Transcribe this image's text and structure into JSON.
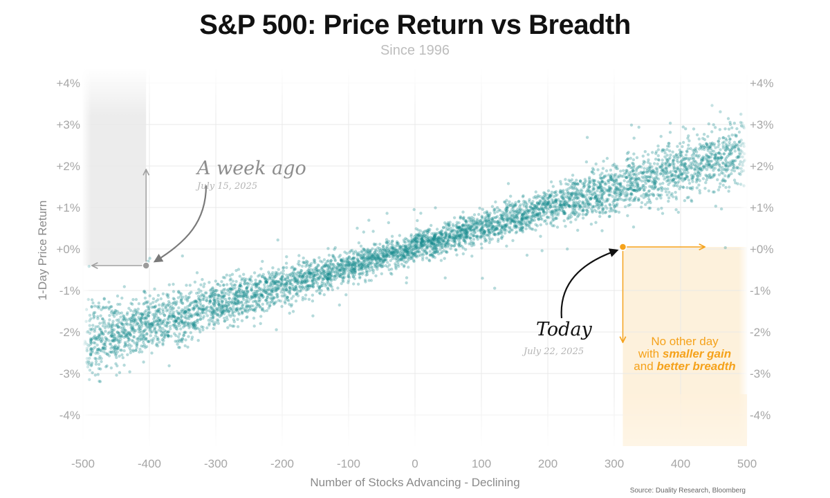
{
  "title": "S&P 500: Price Return vs Breadth",
  "subtitle": "Since 1996",
  "source": "Source: Duality Research, Bloomberg",
  "colors": {
    "points": "#1a8b8f",
    "highlight": "#f5a21b",
    "highlight_fill": "#fdf1dc",
    "gray_fill": "#ececec",
    "gray_marker": "#9b9b9b",
    "grid": "#e9e9e9"
  },
  "annotations": {
    "week_ago": {
      "label": "A week ago",
      "date": "July 15, 2025",
      "x": -405,
      "y": -0.4
    },
    "today": {
      "label": "Today",
      "date": "July 22, 2025",
      "x": 313,
      "y": 0.05
    },
    "note": {
      "line1": "No other day",
      "line2_prefix": "with ",
      "line2_bold": "smaller gain",
      "line3_prefix": "and ",
      "line3_bold": "better breadth"
    }
  },
  "chart_data": {
    "type": "scatter",
    "title": "S&P 500: Price Return vs Breadth",
    "subtitle": "Since 1996",
    "xlabel": "Number of Stocks Advancing - Declining",
    "ylabel": "1-Day Price Return",
    "xlim": [
      -500,
      500
    ],
    "ylim": [
      -4.7,
      4.1
    ],
    "xticks": [
      -500,
      -400,
      -300,
      -200,
      -100,
      0,
      100,
      200,
      300,
      400,
      500
    ],
    "xtick_labels": [
      "-500",
      "-400",
      "-300",
      "-200",
      "-100",
      "0",
      "100",
      "200",
      "300",
      "400",
      "500"
    ],
    "yticks": [
      4,
      3,
      2,
      1,
      0,
      -1,
      -2,
      -3,
      -4
    ],
    "ytick_labels": [
      "+4%",
      "+3%",
      "+2%",
      "+1%",
      "+0%",
      "-1%",
      "-2%",
      "-3%",
      "-4%"
    ],
    "grid": true,
    "series": [
      {
        "name": "Daily observations (approximate cloud)",
        "trend": {
          "slope_pct_per_unit": 0.0047,
          "intercept_pct": 0.05
        },
        "spread_pct": {
          "at_-500": 1.0,
          "at_0": 0.5,
          "at_500": 1.0
        },
        "n": 5200
      },
      {
        "name": "A week ago (July 15, 2025)",
        "x": [
          -405
        ],
        "y": [
          -0.4
        ]
      },
      {
        "name": "Today (July 22, 2025)",
        "x": [
          313
        ],
        "y": [
          0.05
        ]
      }
    ]
  }
}
